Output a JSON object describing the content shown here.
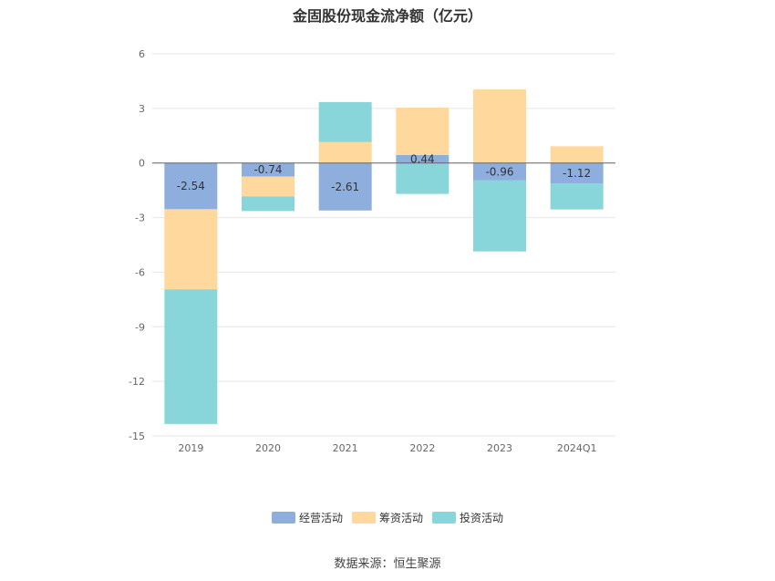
{
  "chart_data": {
    "type": "bar",
    "stacked": true,
    "title": "金固股份现金流净额（亿元）",
    "categories": [
      "2019",
      "2020",
      "2021",
      "2022",
      "2023",
      "2024Q1"
    ],
    "series": [
      {
        "name": "经营活动",
        "color": "#8eaedd",
        "values": [
          -2.54,
          -0.74,
          -2.61,
          0.44,
          -0.96,
          -1.12
        ],
        "labels": [
          "-2.54",
          "-0.74",
          "-2.61",
          "0.44",
          "-0.96",
          "-1.12"
        ]
      },
      {
        "name": "筹资活动",
        "color": "#fed89c",
        "values": [
          -4.4,
          -1.1,
          1.15,
          2.6,
          4.05,
          0.92
        ]
      },
      {
        "name": "投资活动",
        "color": "#88d6d9",
        "values": [
          -7.4,
          -0.8,
          2.2,
          -1.7,
          -3.9,
          -1.43
        ]
      }
    ],
    "y_ticks": [
      "6",
      "3",
      "0",
      "-3",
      "-6",
      "-9",
      "-12",
      "-15"
    ],
    "ylim": [
      -15,
      6
    ],
    "grid": true,
    "legend_position": "bottom"
  },
  "source": "数据来源：恒生聚源"
}
